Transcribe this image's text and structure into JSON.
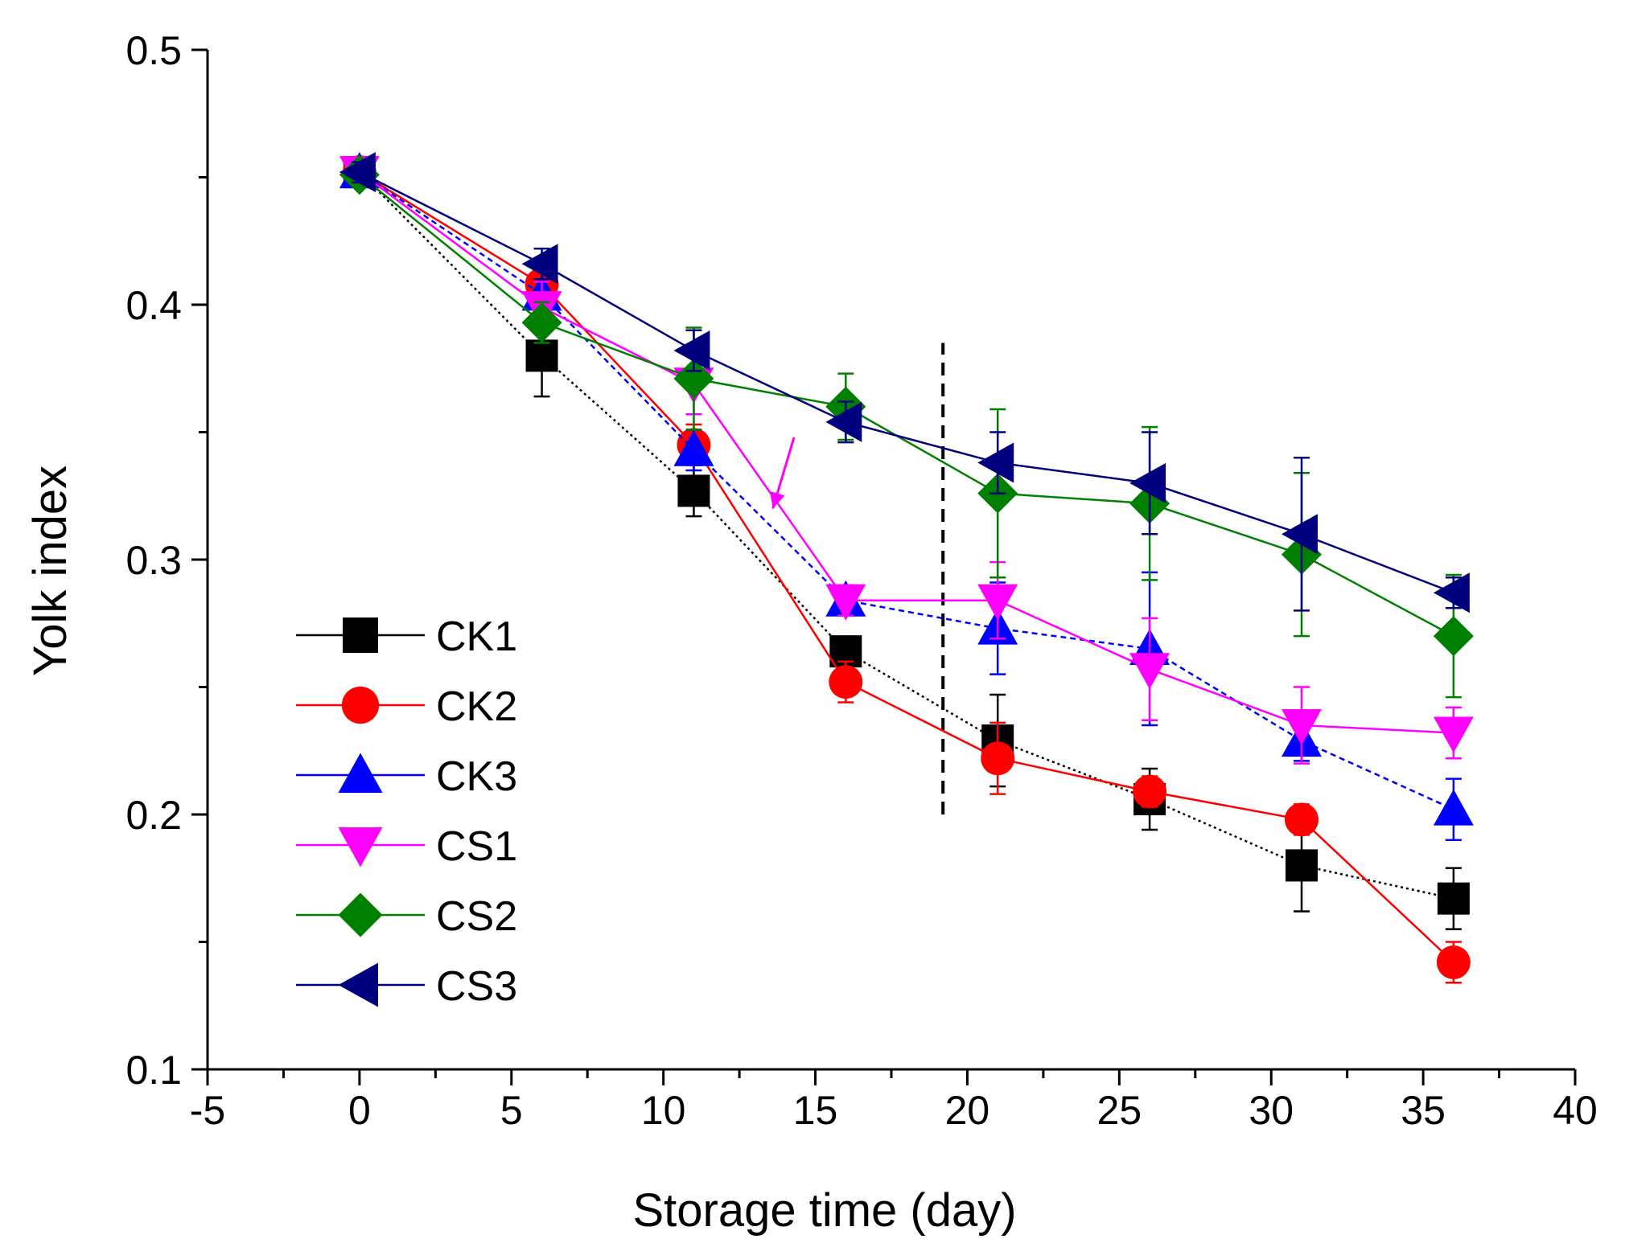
{
  "chart_data": {
    "type": "line",
    "title": "",
    "xlabel": "Storage time (day)",
    "ylabel": "Yolk index",
    "xlim": [
      -5,
      40
    ],
    "ylim": [
      0.1,
      0.5
    ],
    "xticks": [
      -5,
      0,
      5,
      10,
      15,
      20,
      25,
      30,
      35,
      40
    ],
    "xtick_labels": [
      "-5",
      "0",
      "5",
      "10",
      "15",
      "20",
      "25",
      "30",
      "35",
      "40"
    ],
    "yticks": [
      0.1,
      0.2,
      0.3,
      0.4,
      0.5
    ],
    "ytick_labels": [
      "0.1",
      "0.2",
      "0.3",
      "0.4",
      "0.5"
    ],
    "grid": false,
    "legend_position": "bottom-left",
    "annotations": [
      {
        "kind": "vertical-dashed-line",
        "x": 19.2,
        "y_range": [
          0.2,
          0.385
        ],
        "color": "#000000"
      },
      {
        "kind": "arrow",
        "from": [
          14.3,
          0.348
        ],
        "to": [
          13.6,
          0.32
        ],
        "color": "#ff00ff"
      }
    ],
    "series": [
      {
        "name": "CK1",
        "marker": "square",
        "color": "#000000",
        "line_color": "#000000",
        "dash": "3,4",
        "x": [
          0,
          6,
          11,
          16,
          21,
          26,
          31,
          36
        ],
        "y": [
          0.452,
          0.38,
          0.327,
          0.264,
          0.229,
          0.206,
          0.18,
          0.167
        ],
        "err": [
          0.004,
          0.016,
          0.01,
          0.004,
          0.018,
          0.012,
          0.018,
          0.012
        ]
      },
      {
        "name": "CK2",
        "marker": "circle",
        "color": "#ff0000",
        "line_color": "#ff0000",
        "dash": "none",
        "x": [
          0,
          6,
          11,
          16,
          21,
          26,
          31,
          36
        ],
        "y": [
          0.452,
          0.408,
          0.345,
          0.252,
          0.222,
          0.209,
          0.198,
          0.142
        ],
        "err": [
          0.004,
          0.01,
          0.008,
          0.008,
          0.014,
          0.006,
          0.006,
          0.008
        ]
      },
      {
        "name": "CK3",
        "marker": "triangle-up",
        "color": "#0000ff",
        "line_color": "#0000ff",
        "dash": "7,5",
        "x": [
          0,
          6,
          11,
          16,
          21,
          26,
          31,
          36
        ],
        "y": [
          0.452,
          0.404,
          0.343,
          0.284,
          0.273,
          0.265,
          0.229,
          0.202
        ],
        "err": [
          0.004,
          0.01,
          0.008,
          0.006,
          0.018,
          0.03,
          0.008,
          0.012
        ]
      },
      {
        "name": "CS1",
        "marker": "triangle-down",
        "color": "#ff00ff",
        "line_color": "#ff00ff",
        "dash": "none",
        "x": [
          0,
          6,
          11,
          16,
          21,
          26,
          31,
          36
        ],
        "y": [
          0.452,
          0.399,
          0.369,
          0.284,
          0.284,
          0.257,
          0.235,
          0.232
        ],
        "err": [
          0.004,
          0.01,
          0.012,
          0.006,
          0.015,
          0.02,
          0.015,
          0.01
        ]
      },
      {
        "name": "CS2",
        "marker": "diamond",
        "color": "#008000",
        "line_color": "#008000",
        "dash": "none",
        "x": [
          0,
          6,
          11,
          16,
          21,
          26,
          31,
          36
        ],
        "y": [
          0.451,
          0.393,
          0.371,
          0.36,
          0.326,
          0.322,
          0.302,
          0.27
        ],
        "err": [
          0.004,
          0.008,
          0.02,
          0.013,
          0.033,
          0.03,
          0.032,
          0.024
        ]
      },
      {
        "name": "CS3",
        "marker": "triangle-left",
        "color": "#00007f",
        "line_color": "#00007f",
        "dash": "none",
        "x": [
          0,
          6,
          11,
          16,
          21,
          26,
          31,
          36
        ],
        "y": [
          0.452,
          0.416,
          0.382,
          0.354,
          0.338,
          0.33,
          0.31,
          0.287
        ],
        "err": [
          0.004,
          0.006,
          0.008,
          0.008,
          0.012,
          0.02,
          0.03,
          0.006
        ]
      }
    ]
  }
}
